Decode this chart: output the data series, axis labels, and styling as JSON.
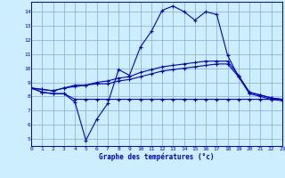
{
  "bg_color": "#cceeff",
  "line_color": "#0000cc",
  "grid_color": "#88aacc",
  "xlabel": "Graphe des températures (°c)",
  "xlim": [
    0,
    23
  ],
  "ylim": [
    4.5,
    14.7
  ],
  "xticks": [
    0,
    1,
    2,
    3,
    4,
    5,
    6,
    7,
    8,
    9,
    10,
    11,
    12,
    13,
    14,
    15,
    16,
    17,
    18,
    19,
    20,
    21,
    22,
    23
  ],
  "yticks": [
    5,
    6,
    7,
    8,
    9,
    10,
    11,
    12,
    13,
    14
  ],
  "curve1_x": [
    0,
    1,
    2,
    3,
    4,
    5,
    6,
    7,
    8,
    9,
    10,
    11,
    12,
    13,
    14,
    15,
    16,
    17,
    18,
    19,
    20,
    21,
    22,
    23
  ],
  "curve1_y": [
    8.6,
    8.3,
    8.2,
    8.2,
    7.6,
    4.9,
    6.4,
    7.5,
    9.9,
    9.5,
    11.5,
    12.6,
    14.1,
    14.4,
    14.0,
    13.4,
    14.0,
    13.8,
    10.9,
    9.4,
    8.2,
    8.0,
    7.8,
    7.7
  ],
  "curve2_x": [
    0,
    1,
    2,
    3,
    4,
    5,
    6,
    7,
    8,
    9,
    10,
    11,
    12,
    13,
    14,
    15,
    16,
    17,
    18,
    19,
    20,
    21,
    22,
    23
  ],
  "curve2_y": [
    8.6,
    8.3,
    8.2,
    8.2,
    7.8,
    7.8,
    7.8,
    7.8,
    7.8,
    7.8,
    7.8,
    7.8,
    7.8,
    7.8,
    7.8,
    7.8,
    7.8,
    7.8,
    7.8,
    7.8,
    7.8,
    7.8,
    7.8,
    7.8
  ],
  "curve3_x": [
    0,
    1,
    2,
    3,
    4,
    5,
    6,
    7,
    8,
    9,
    10,
    11,
    12,
    13,
    14,
    15,
    16,
    17,
    18,
    19,
    20,
    21,
    22,
    23
  ],
  "curve3_y": [
    8.6,
    8.5,
    8.4,
    8.6,
    8.7,
    8.8,
    8.9,
    8.9,
    9.1,
    9.2,
    9.4,
    9.6,
    9.8,
    9.9,
    10.0,
    10.1,
    10.2,
    10.3,
    10.3,
    9.4,
    8.3,
    8.1,
    7.9,
    7.8
  ],
  "curve4_x": [
    0,
    1,
    2,
    3,
    4,
    5,
    6,
    7,
    8,
    9,
    10,
    11,
    12,
    13,
    14,
    15,
    16,
    17,
    18,
    19,
    20,
    21,
    22,
    23
  ],
  "curve4_y": [
    8.6,
    8.5,
    8.4,
    8.6,
    8.8,
    8.8,
    9.0,
    9.1,
    9.3,
    9.4,
    9.7,
    9.9,
    10.1,
    10.2,
    10.3,
    10.4,
    10.5,
    10.5,
    10.5,
    9.5,
    8.3,
    8.1,
    7.9,
    7.8
  ]
}
